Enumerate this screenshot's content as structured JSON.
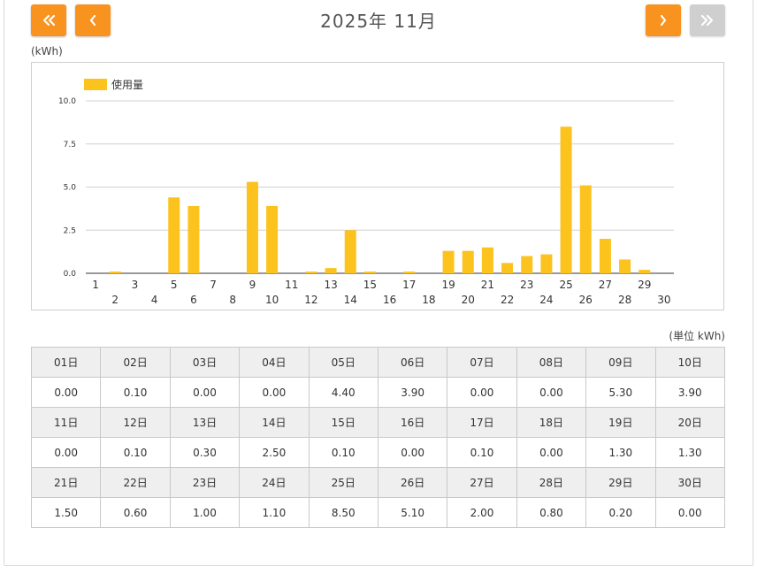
{
  "header": {
    "title": "2025年 11月",
    "nav": {
      "first_icon": "double-chevron-left-icon",
      "prev_icon": "chevron-left-icon",
      "next_icon": "chevron-right-icon",
      "last_icon": "double-chevron-right-icon",
      "active_color": "#f7931e",
      "disabled_color": "#cfcfcf"
    }
  },
  "chart_unit": "(kWh)",
  "table_unit": "(単位 kWh)",
  "chart_data": {
    "type": "bar",
    "title": "",
    "xlabel": "",
    "ylabel": "(kWh)",
    "ylim": [
      0,
      10
    ],
    "yticks": [
      "0.0",
      "2.5",
      "5.0",
      "7.5",
      "10.0"
    ],
    "grid": true,
    "legend_position": "top-left",
    "categories": [
      "1",
      "2",
      "3",
      "4",
      "5",
      "6",
      "7",
      "8",
      "9",
      "10",
      "11",
      "12",
      "13",
      "14",
      "15",
      "16",
      "17",
      "18",
      "19",
      "20",
      "21",
      "22",
      "23",
      "24",
      "25",
      "26",
      "27",
      "28",
      "29",
      "30"
    ],
    "series": [
      {
        "name": "使用量",
        "color": "#fcc31e",
        "values": [
          0.0,
          0.1,
          0.0,
          0.0,
          4.4,
          3.9,
          0.0,
          0.0,
          5.3,
          3.9,
          0.0,
          0.1,
          0.3,
          2.5,
          0.1,
          0.0,
          0.1,
          0.0,
          1.3,
          1.3,
          1.5,
          0.6,
          1.0,
          1.1,
          8.5,
          5.1,
          2.0,
          0.8,
          0.2,
          0.0
        ]
      }
    ]
  },
  "table": {
    "rows": [
      {
        "days": [
          "01日",
          "02日",
          "03日",
          "04日",
          "05日",
          "06日",
          "07日",
          "08日",
          "09日",
          "10日"
        ],
        "values": [
          "0.00",
          "0.10",
          "0.00",
          "0.00",
          "4.40",
          "3.90",
          "0.00",
          "0.00",
          "5.30",
          "3.90"
        ]
      },
      {
        "days": [
          "11日",
          "12日",
          "13日",
          "14日",
          "15日",
          "16日",
          "17日",
          "18日",
          "19日",
          "20日"
        ],
        "values": [
          "0.00",
          "0.10",
          "0.30",
          "2.50",
          "0.10",
          "0.00",
          "0.10",
          "0.00",
          "1.30",
          "1.30"
        ]
      },
      {
        "days": [
          "21日",
          "22日",
          "23日",
          "24日",
          "25日",
          "26日",
          "27日",
          "28日",
          "29日",
          "30日"
        ],
        "values": [
          "1.50",
          "0.60",
          "1.00",
          "1.10",
          "8.50",
          "5.10",
          "2.00",
          "0.80",
          "0.20",
          "0.00"
        ]
      }
    ]
  }
}
